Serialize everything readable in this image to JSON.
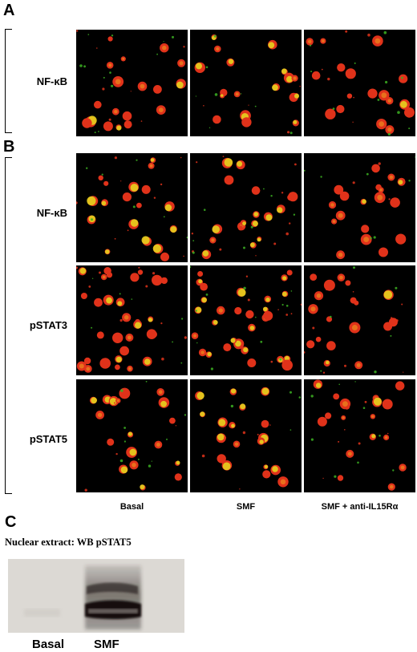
{
  "panels": {
    "A": {
      "letter": "A",
      "rows": [
        {
          "label": "NF-κB"
        }
      ]
    },
    "B": {
      "letter": "B",
      "rows": [
        {
          "label": "NF-κB"
        },
        {
          "label": "pSTAT3"
        },
        {
          "label": "pSTAT5"
        }
      ]
    },
    "C": {
      "letter": "C",
      "title": "Nuclear extract: WB  pSTAT5",
      "lanes": [
        "Basal",
        "SMF"
      ]
    }
  },
  "columns": [
    "Basal",
    "SMF",
    "SMF + anti-IL15Rα"
  ],
  "colors": {
    "red": "#e0321a",
    "orange": "#e8701c",
    "yellow": "#e6d21e",
    "green": "#3cb022",
    "background": "#000000",
    "blot_bg": "#d9d6d1",
    "band": "#1a1512"
  }
}
